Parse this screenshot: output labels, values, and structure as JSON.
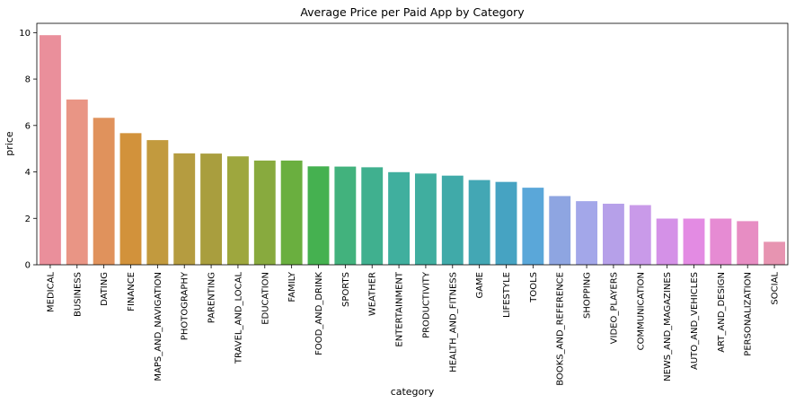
{
  "chart_data": {
    "type": "bar",
    "title": "Average Price per Paid App by Category",
    "xlabel": "category",
    "ylabel": "price",
    "ylim": [
      0,
      10.4
    ],
    "yticks": [
      0,
      2,
      4,
      6,
      8,
      10
    ],
    "grid": false,
    "categories": [
      "MEDICAL",
      "BUSINESS",
      "DATING",
      "FINANCE",
      "MAPS_AND_NAVIGATION",
      "PHOTOGRAPHY",
      "PARENTING",
      "TRAVEL_AND_LOCAL",
      "EDUCATION",
      "FAMILY",
      "FOOD_AND_DRINK",
      "SPORTS",
      "WEATHER",
      "ENTERTAINMENT",
      "PRODUCTIVITY",
      "HEALTH_AND_FITNESS",
      "GAME",
      "LIFESTYLE",
      "TOOLS",
      "BOOKS_AND_REFERENCE",
      "SHOPPING",
      "VIDEO_PLAYERS",
      "COMMUNICATION",
      "NEWS_AND_MAGAZINES",
      "AUTO_AND_VEHICLES",
      "ART_AND_DESIGN",
      "PERSONALIZATION",
      "SOCIAL"
    ],
    "values": [
      9.89,
      7.12,
      6.33,
      5.67,
      5.37,
      4.8,
      4.79,
      4.67,
      4.49,
      4.49,
      4.24,
      4.23,
      4.2,
      3.99,
      3.93,
      3.84,
      3.65,
      3.57,
      3.32,
      2.96,
      2.74,
      2.63,
      2.57,
      1.99,
      1.99,
      1.99,
      1.88,
      0.99
    ],
    "colors": [
      "#ea8f9b",
      "#e99585",
      "#e0925c",
      "#d2923b",
      "#c29a3e",
      "#b59c40",
      "#a99e3e",
      "#9ea73e",
      "#88aa3e",
      "#6aaf3f",
      "#45b150",
      "#42b27d",
      "#40b08f",
      "#40af9e",
      "#40ae9f",
      "#40aaa9",
      "#43a7b4",
      "#46a3c2",
      "#5aa7d9",
      "#8ea5e1",
      "#a3a7e9",
      "#b6a0e9",
      "#c99ae9",
      "#d491e7",
      "#e38be3",
      "#e68bd3",
      "#e78dc3",
      "#e794b1"
    ]
  }
}
